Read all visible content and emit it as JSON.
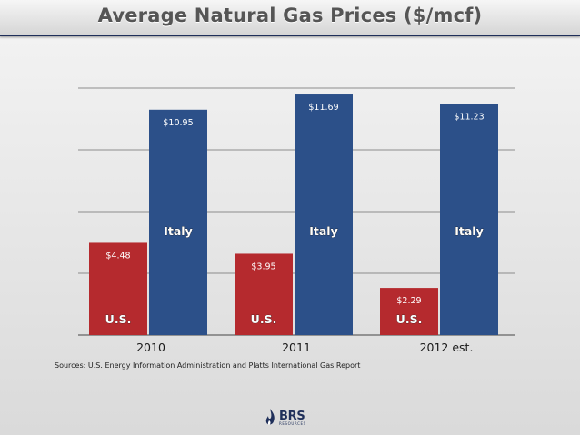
{
  "slide": {
    "title": "Average Natural Gas Prices ($/mcf)",
    "source_note": "Sources: U.S. Energy Information Administration and Platts International Gas Report",
    "logo": {
      "name": "BRS",
      "subtext": "RESOURCES",
      "icon": "flame-icon",
      "color": "#1f2f5a"
    }
  },
  "colors": {
    "us": "#b52a2e",
    "italy": "#2c5089",
    "title_rule": "#1f2f5a"
  },
  "chart_data": {
    "type": "bar",
    "title": "Average Natural Gas Prices ($/mcf)",
    "categories": [
      "2010",
      "2011",
      "2012 est."
    ],
    "series": [
      {
        "name": "U.S.",
        "values": [
          4.48,
          3.95,
          2.29
        ],
        "labels": [
          "$4.48",
          "$3.95",
          "$2.29"
        ],
        "color": "#b52a2e"
      },
      {
        "name": "Italy",
        "values": [
          10.95,
          11.69,
          11.23
        ],
        "labels": [
          "$10.95",
          "$11.69",
          "$11.23"
        ],
        "color": "#2c5089"
      }
    ],
    "ylim": [
      0,
      12
    ],
    "grid": true,
    "legend": "none"
  }
}
